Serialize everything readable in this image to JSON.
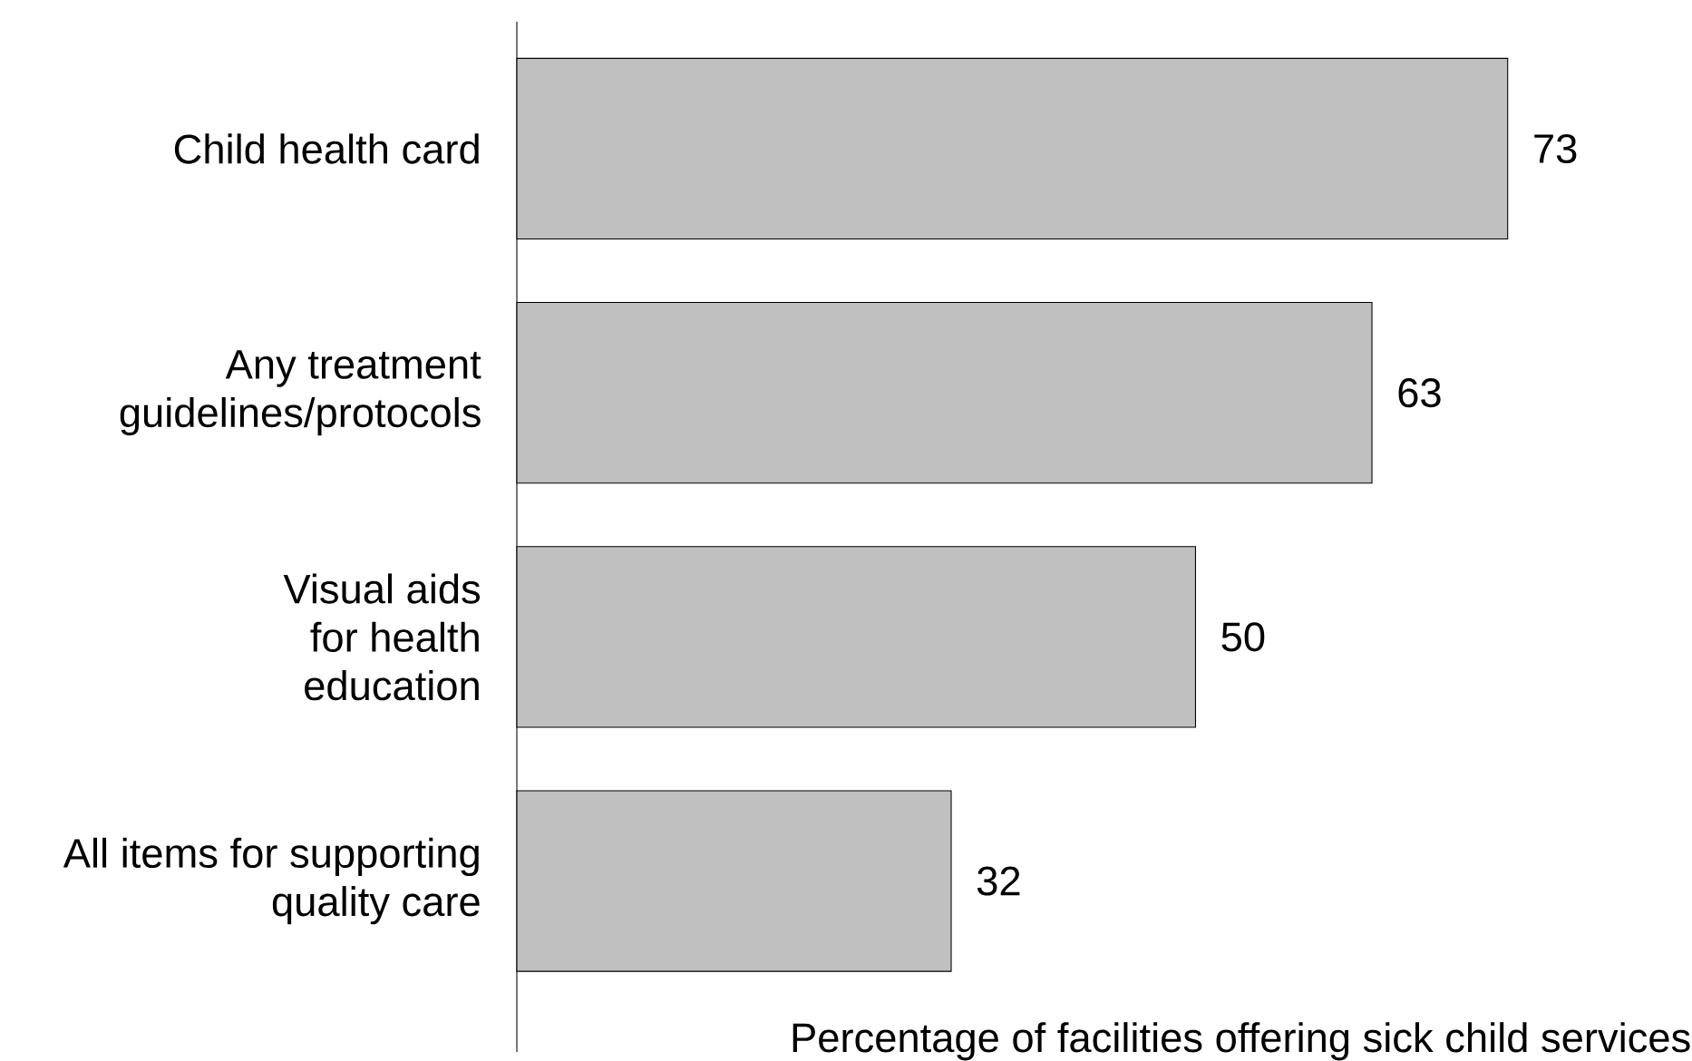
{
  "chart_data": {
    "type": "bar",
    "orientation": "horizontal",
    "xlabel": "Percentage of facilities offering sick child services",
    "categories": [
      "Child health card",
      "Any treatment guidelines/protocols",
      "Visual aids for health education",
      "All items for supporting quality care"
    ],
    "values": [
      73,
      63,
      50,
      32
    ],
    "color": "#c0c0c0",
    "data_labels": true
  }
}
